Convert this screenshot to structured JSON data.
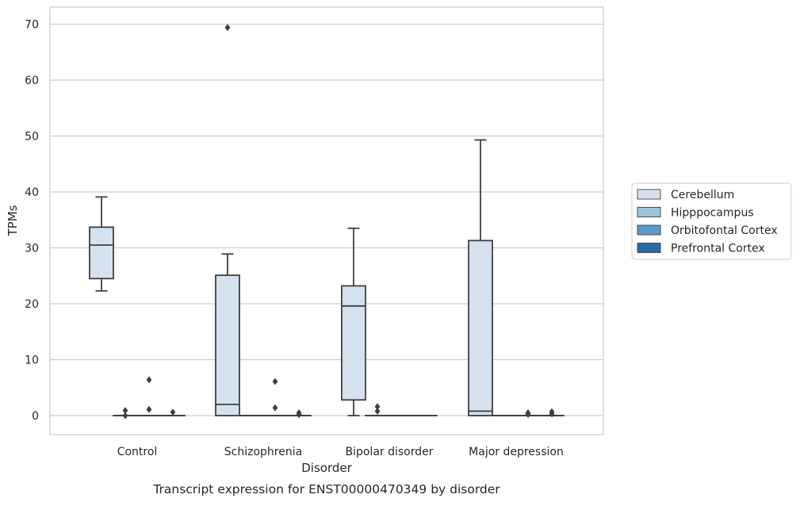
{
  "chart_data": {
    "type": "box",
    "xlabel": "Disorder",
    "ylabel": "TPMs",
    "caption": "Transcript expression for ENST00000470349 by disorder",
    "ylim": [
      -3.3,
      73
    ],
    "yticks": [
      0,
      10,
      20,
      30,
      40,
      50,
      60,
      70
    ],
    "grid": true,
    "legend_position": "center-right",
    "categories": [
      "Control",
      "Schizophrenia",
      "Bipolar disorder",
      "Major depression"
    ],
    "series": [
      {
        "name": "Cerebellum",
        "color": "#d4e2ef",
        "boxes": [
          {
            "category": "Control",
            "whislo": 22.3,
            "q1": 24.5,
            "med": 30.5,
            "q3": 33.7,
            "whishi": 39.1,
            "fliers": []
          },
          {
            "category": "Schizophrenia",
            "whislo": 0,
            "q1": 0,
            "med": 2.0,
            "q3": 25.1,
            "whishi": 28.9,
            "fliers": [
              69.4
            ]
          },
          {
            "category": "Bipolar disorder",
            "whislo": 0,
            "q1": 2.8,
            "med": 19.6,
            "q3": 23.2,
            "whishi": 33.5,
            "fliers": []
          },
          {
            "category": "Major depression",
            "whislo": 0,
            "q1": 0,
            "med": 0.8,
            "q3": 31.3,
            "whishi": 49.3,
            "fliers": []
          }
        ]
      },
      {
        "name": "Hipppocampus",
        "color": "#9ac4de",
        "boxes": [
          {
            "category": "Control",
            "whislo": 0,
            "q1": 0,
            "med": 0,
            "q3": 0,
            "whishi": 0,
            "fliers": [
              0.0,
              0.9
            ]
          },
          {
            "category": "Schizophrenia",
            "whislo": 0,
            "q1": 0,
            "med": 0,
            "q3": 0,
            "whishi": 0,
            "fliers": []
          },
          {
            "category": "Bipolar disorder",
            "whislo": 0,
            "q1": 0,
            "med": 0,
            "q3": 0,
            "whishi": 0,
            "fliers": [
              0.8,
              1.6
            ]
          },
          {
            "category": "Major depression",
            "whislo": 0,
            "q1": 0,
            "med": 0,
            "q3": 0,
            "whishi": 0,
            "fliers": []
          }
        ]
      },
      {
        "name": "Orbitofontal Cortex",
        "color": "#5a9bc9",
        "boxes": [
          {
            "category": "Control",
            "whislo": 0,
            "q1": 0,
            "med": 0,
            "q3": 0,
            "whishi": 0,
            "fliers": [
              1.1,
              6.4
            ]
          },
          {
            "category": "Schizophrenia",
            "whislo": 0,
            "q1": 0,
            "med": 0,
            "q3": 0,
            "whishi": 0,
            "fliers": [
              1.4,
              6.1
            ]
          },
          {
            "category": "Bipolar disorder",
            "whislo": 0,
            "q1": 0,
            "med": 0,
            "q3": 0,
            "whishi": 0,
            "fliers": []
          },
          {
            "category": "Major depression",
            "whislo": 0,
            "q1": 0,
            "med": 0,
            "q3": 0,
            "whishi": 0,
            "fliers": [
              0.2,
              0.5
            ]
          }
        ]
      },
      {
        "name": "Prefrontal Cortex",
        "color": "#2c6aa7",
        "boxes": [
          {
            "category": "Control",
            "whislo": 0,
            "q1": 0,
            "med": 0,
            "q3": 0,
            "whishi": 0,
            "fliers": [
              0.6
            ]
          },
          {
            "category": "Schizophrenia",
            "whislo": 0,
            "q1": 0,
            "med": 0,
            "q3": 0,
            "whishi": 0,
            "fliers": [
              0.2,
              0.5
            ]
          },
          {
            "category": "Bipolar disorder",
            "whislo": 0,
            "q1": 0,
            "med": 0,
            "q3": 0,
            "whishi": 0,
            "fliers": []
          },
          {
            "category": "Major depression",
            "whislo": 0,
            "q1": 0,
            "med": 0,
            "q3": 0,
            "whishi": 0,
            "fliers": [
              0.3,
              0.7
            ]
          }
        ]
      }
    ]
  }
}
